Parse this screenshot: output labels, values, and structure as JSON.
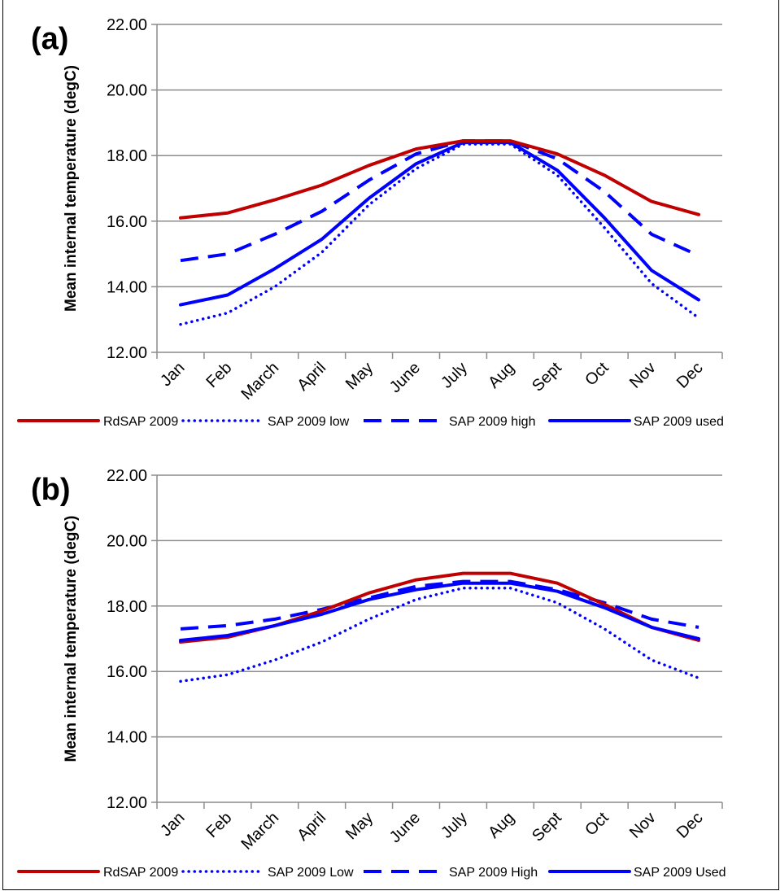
{
  "chart_data": [
    {
      "type": "line",
      "panel_label": "(a)",
      "ylabel": "Mean internal temperature (degC)",
      "xlabel": "",
      "ylim": [
        12,
        22
      ],
      "yticks": [
        "12.00",
        "14.00",
        "16.00",
        "18.00",
        "20.00",
        "22.00"
      ],
      "grid": "horizontal",
      "legend_position": "bottom",
      "categories": [
        "Jan",
        "Feb",
        "March",
        "April",
        "May",
        "June",
        "July",
        "Aug",
        "Sept",
        "Oct",
        "Nov",
        "Dec"
      ],
      "series": [
        {
          "name": "RdSAP 2009",
          "style": "solid",
          "color": "#C00000",
          "values": [
            16.1,
            16.25,
            16.65,
            17.1,
            17.7,
            18.2,
            18.45,
            18.45,
            18.05,
            17.4,
            16.6,
            16.2
          ]
        },
        {
          "name": "SAP 2009 low",
          "style": "dotted",
          "color": "#0000FF",
          "values": [
            12.85,
            13.2,
            14.0,
            15.05,
            16.5,
            17.6,
            18.35,
            18.35,
            17.4,
            15.8,
            14.1,
            13.05
          ]
        },
        {
          "name": "SAP 2009 high",
          "style": "dashed",
          "color": "#0000FF",
          "values": [
            14.8,
            15.0,
            15.6,
            16.3,
            17.25,
            18.05,
            18.45,
            18.45,
            17.9,
            16.9,
            15.6,
            14.95
          ]
        },
        {
          "name": "SAP 2009 used",
          "style": "solid",
          "color": "#0000FF",
          "values": [
            13.45,
            13.75,
            14.55,
            15.45,
            16.7,
            17.75,
            18.4,
            18.4,
            17.55,
            16.1,
            14.5,
            13.6
          ]
        }
      ]
    },
    {
      "type": "line",
      "panel_label": "(b)",
      "ylabel": "Mean internal temperature (degC)",
      "xlabel": "",
      "ylim": [
        12,
        22
      ],
      "yticks": [
        "12.00",
        "14.00",
        "16.00",
        "18.00",
        "20.00",
        "22.00"
      ],
      "grid": "horizontal",
      "legend_position": "bottom",
      "categories": [
        "Jan",
        "Feb",
        "March",
        "April",
        "May",
        "June",
        "July",
        "Aug",
        "Sept",
        "Oct",
        "Nov",
        "Dec"
      ],
      "series": [
        {
          "name": "RdSAP 2009",
          "style": "solid",
          "color": "#C00000",
          "values": [
            16.9,
            17.05,
            17.4,
            17.85,
            18.4,
            18.8,
            19.0,
            19.0,
            18.7,
            18.05,
            17.35,
            16.95
          ]
        },
        {
          "name": "SAP 2009 Low",
          "style": "dotted",
          "color": "#0000FF",
          "values": [
            15.7,
            15.9,
            16.35,
            16.9,
            17.6,
            18.2,
            18.55,
            18.55,
            18.1,
            17.3,
            16.35,
            15.8
          ]
        },
        {
          "name": "SAP 2009 High",
          "style": "dashed",
          "color": "#0000FF",
          "values": [
            17.3,
            17.4,
            17.6,
            17.9,
            18.25,
            18.6,
            18.75,
            18.75,
            18.5,
            18.1,
            17.6,
            17.35
          ]
        },
        {
          "name": "SAP 2009 Used",
          "style": "solid",
          "color": "#0000FF",
          "values": [
            16.95,
            17.1,
            17.4,
            17.75,
            18.2,
            18.5,
            18.7,
            18.7,
            18.45,
            17.95,
            17.35,
            17.0
          ]
        }
      ]
    }
  ]
}
